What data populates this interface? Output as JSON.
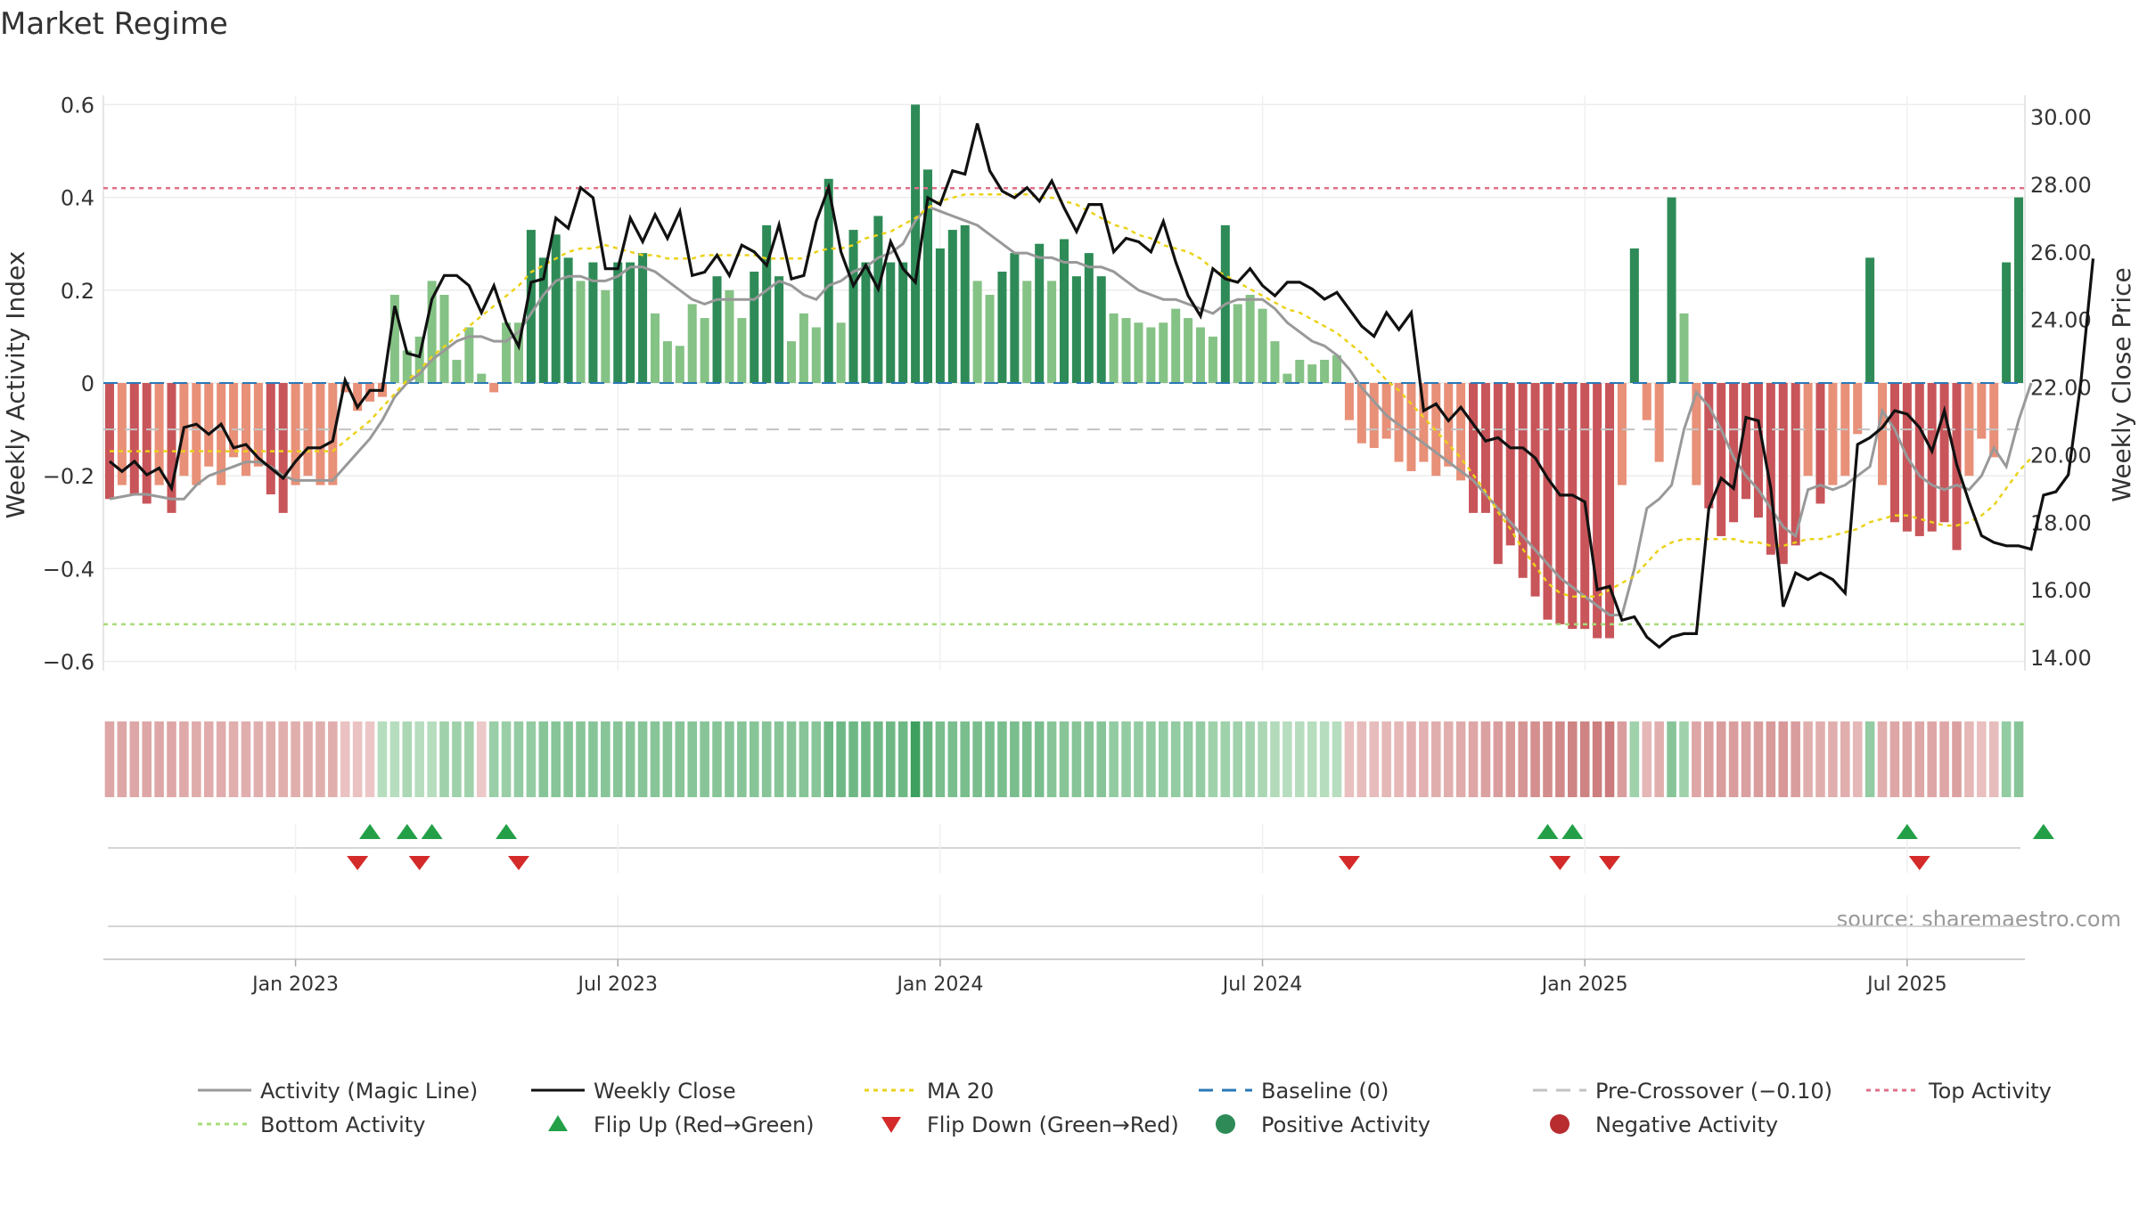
{
  "title": "Market Regime",
  "source": "source: sharemaestro.com",
  "colors": {
    "activity_line": "#999999",
    "close_line": "#111111",
    "ma20_line": "#ecd21a",
    "baseline": "#2b78b6",
    "pre_crossover": "#c3c3c3",
    "top_line": "#e0708a",
    "bottom_line": "#a8dc7a",
    "flip_up": "#23a047",
    "flip_down": "#d42a2a",
    "pos_dark": "#2e8b57",
    "pos_light": "#85c285",
    "neg_dark": "#c8555a",
    "neg_light": "#e89078"
  },
  "chart_data": {
    "type": "bar",
    "title": "Market Regime",
    "ylabel": "Weekly Activity Index",
    "y2label": "Weekly Close Price",
    "ylim": [
      -0.62,
      0.62
    ],
    "y2lim": [
      13.0,
      30.8
    ],
    "yticks": [
      0.6,
      0.4,
      0.2,
      0,
      -0.2,
      -0.4,
      -0.6
    ],
    "ytick_labels": [
      "0.6",
      "0.4",
      "0.2",
      "0",
      "−0.2",
      "−0.4",
      "−0.6"
    ],
    "y2ticks": [
      30,
      28,
      26,
      24,
      22,
      20,
      18,
      16,
      14
    ],
    "y2tick_labels": [
      "30.00",
      "28.00",
      "26.00",
      "24.00",
      "22.00",
      "20.00",
      "18.00",
      "16.00",
      "14.00"
    ],
    "xtick_labels": [
      "Jan 2023",
      "Jul 2023",
      "Jan 2024",
      "Jul 2024",
      "Jan 2025",
      "Jul 2025"
    ],
    "xtick_index": [
      15,
      41,
      67,
      93,
      119,
      145
    ],
    "grid": true,
    "lines": {
      "top_activity": 0.42,
      "bottom_activity": -0.52,
      "baseline": 0,
      "pre_crossover": -0.1
    },
    "activity": [
      -0.25,
      -0.22,
      -0.24,
      -0.26,
      -0.22,
      -0.28,
      -0.2,
      -0.22,
      -0.18,
      -0.22,
      -0.16,
      -0.2,
      -0.18,
      -0.24,
      -0.28,
      -0.22,
      -0.2,
      -0.22,
      -0.22,
      -0.02,
      -0.06,
      -0.04,
      -0.03,
      0.19,
      0.07,
      0.1,
      0.22,
      0.19,
      0.05,
      0.12,
      0.02,
      -0.02,
      0.13,
      0.13,
      0.33,
      0.27,
      0.32,
      0.27,
      0.22,
      0.26,
      0.2,
      0.26,
      0.26,
      0.28,
      0.15,
      0.09,
      0.08,
      0.17,
      0.14,
      0.23,
      0.2,
      0.14,
      0.24,
      0.34,
      0.23,
      0.09,
      0.15,
      0.12,
      0.44,
      0.13,
      0.33,
      0.26,
      0.36,
      0.26,
      0.26,
      0.6,
      0.46,
      0.29,
      0.33,
      0.34,
      0.22,
      0.19,
      0.24,
      0.28,
      0.22,
      0.3,
      0.22,
      0.31,
      0.23,
      0.28,
      0.23,
      0.15,
      0.14,
      0.13,
      0.12,
      0.13,
      0.16,
      0.14,
      0.12,
      0.1,
      0.34,
      0.17,
      0.19,
      0.16,
      0.09,
      0.02,
      0.05,
      0.04,
      0.05,
      0.06,
      -0.08,
      -0.13,
      -0.14,
      -0.12,
      -0.17,
      -0.19,
      -0.17,
      -0.2,
      -0.18,
      -0.21,
      -0.28,
      -0.28,
      -0.39,
      -0.35,
      -0.42,
      -0.46,
      -0.51,
      -0.52,
      -0.53,
      -0.53,
      -0.55,
      -0.55,
      -0.22,
      0.29,
      -0.08,
      -0.17,
      0.4,
      0.15,
      -0.22,
      -0.27,
      -0.33,
      -0.3,
      -0.25,
      -0.29,
      -0.37,
      -0.39,
      -0.35,
      -0.2,
      -0.26,
      -0.22,
      -0.2,
      -0.11,
      0.27,
      -0.22,
      -0.3,
      -0.32,
      -0.33,
      -0.32,
      -0.3,
      -0.36,
      -0.2,
      -0.12,
      -0.16,
      0.26,
      0.4
    ],
    "magic_line": [
      -0.25,
      -0.245,
      -0.24,
      -0.24,
      -0.245,
      -0.25,
      -0.25,
      -0.22,
      -0.2,
      -0.19,
      -0.18,
      -0.17,
      -0.17,
      -0.18,
      -0.2,
      -0.21,
      -0.21,
      -0.21,
      -0.21,
      -0.18,
      -0.15,
      -0.12,
      -0.08,
      -0.03,
      0.0,
      0.02,
      0.05,
      0.07,
      0.09,
      0.1,
      0.1,
      0.09,
      0.09,
      0.11,
      0.15,
      0.19,
      0.22,
      0.23,
      0.23,
      0.22,
      0.22,
      0.23,
      0.25,
      0.25,
      0.24,
      0.22,
      0.2,
      0.18,
      0.17,
      0.18,
      0.18,
      0.18,
      0.18,
      0.2,
      0.22,
      0.21,
      0.19,
      0.18,
      0.21,
      0.22,
      0.24,
      0.25,
      0.27,
      0.28,
      0.3,
      0.35,
      0.38,
      0.37,
      0.36,
      0.35,
      0.34,
      0.32,
      0.3,
      0.28,
      0.28,
      0.27,
      0.27,
      0.26,
      0.26,
      0.25,
      0.25,
      0.24,
      0.22,
      0.2,
      0.19,
      0.18,
      0.18,
      0.17,
      0.16,
      0.15,
      0.17,
      0.18,
      0.18,
      0.18,
      0.16,
      0.13,
      0.11,
      0.09,
      0.08,
      0.06,
      0.03,
      -0.01,
      -0.04,
      -0.07,
      -0.09,
      -0.11,
      -0.13,
      -0.15,
      -0.17,
      -0.19,
      -0.21,
      -0.24,
      -0.27,
      -0.3,
      -0.33,
      -0.36,
      -0.39,
      -0.42,
      -0.44,
      -0.46,
      -0.48,
      -0.5,
      -0.5,
      -0.4,
      -0.27,
      -0.25,
      -0.22,
      -0.1,
      -0.02,
      -0.05,
      -0.1,
      -0.16,
      -0.2,
      -0.23,
      -0.27,
      -0.31,
      -0.33,
      -0.23,
      -0.22,
      -0.23,
      -0.22,
      -0.2,
      -0.18,
      -0.06,
      -0.1,
      -0.16,
      -0.2,
      -0.22,
      -0.23,
      -0.22,
      -0.23,
      -0.2,
      -0.14,
      -0.18,
      -0.08,
      0.0
    ],
    "weekly_close": [
      19.8,
      19.5,
      19.8,
      19.4,
      19.6,
      19.0,
      20.8,
      20.9,
      20.6,
      20.9,
      20.2,
      20.3,
      19.9,
      19.6,
      19.3,
      19.8,
      20.2,
      20.2,
      20.4,
      22.2,
      21.4,
      21.9,
      21.9,
      24.4,
      23.0,
      22.9,
      24.6,
      25.3,
      25.3,
      25.0,
      24.2,
      25.0,
      23.9,
      23.2,
      25.1,
      25.2,
      27.0,
      26.7,
      27.9,
      27.6,
      25.5,
      25.5,
      27.0,
      26.3,
      27.1,
      26.4,
      27.2,
      25.3,
      25.4,
      25.9,
      25.3,
      26.2,
      26.0,
      25.6,
      26.8,
      25.2,
      25.3,
      26.9,
      27.9,
      26.0,
      25.0,
      25.6,
      24.9,
      26.3,
      25.5,
      25.1,
      27.6,
      27.4,
      28.4,
      28.3,
      29.8,
      28.4,
      27.8,
      27.6,
      27.9,
      27.5,
      28.1,
      27.3,
      26.6,
      27.4,
      27.4,
      26.0,
      26.4,
      26.3,
      26.0,
      26.9,
      25.7,
      24.7,
      24.1,
      25.5,
      25.2,
      25.1,
      25.5,
      25.0,
      24.7,
      25.1,
      25.1,
      24.9,
      24.6,
      24.8,
      24.3,
      23.8,
      23.5,
      24.2,
      23.7,
      24.2,
      21.3,
      21.5,
      21.0,
      21.4,
      20.9,
      20.4,
      20.5,
      20.2,
      20.2,
      19.9,
      19.3,
      18.8,
      18.8,
      18.6,
      16.0,
      16.1,
      15.1,
      15.2,
      14.6,
      14.3,
      14.6,
      14.7,
      14.7,
      18.4,
      19.3,
      19.0,
      21.1,
      21.0,
      19.0,
      15.5,
      16.5,
      16.3,
      16.5,
      16.3,
      15.9,
      20.3,
      20.5,
      20.8,
      21.3,
      21.2,
      20.8,
      20.1,
      21.3,
      19.7,
      18.6,
      17.6,
      17.4,
      17.3,
      17.3,
      17.2,
      18.8,
      18.9,
      19.4,
      22.1,
      25.8
    ],
    "ma20": [
      20.1,
      20.1,
      20.1,
      20.1,
      20.1,
      20.1,
      20.1,
      20.1,
      20.1,
      20.1,
      20.1,
      20.1,
      20.1,
      20.1,
      20.1,
      20.1,
      20.1,
      20.1,
      20.1,
      20.4,
      20.7,
      21.0,
      21.4,
      21.8,
      22.2,
      22.5,
      22.9,
      23.2,
      23.5,
      23.8,
      24.1,
      24.4,
      24.7,
      25.0,
      25.4,
      25.6,
      25.8,
      26.0,
      26.1,
      26.1,
      26.2,
      26.1,
      26.0,
      25.9,
      25.9,
      25.8,
      25.8,
      25.8,
      25.9,
      25.9,
      25.9,
      25.9,
      25.9,
      25.8,
      25.8,
      25.8,
      25.8,
      26.0,
      26.1,
      26.1,
      26.2,
      26.4,
      26.5,
      26.6,
      26.8,
      27.0,
      27.3,
      27.5,
      27.6,
      27.7,
      27.7,
      27.7,
      27.7,
      27.7,
      27.7,
      27.6,
      27.6,
      27.5,
      27.4,
      27.2,
      27.0,
      26.8,
      26.7,
      26.5,
      26.4,
      26.2,
      26.1,
      26.0,
      25.8,
      25.5,
      25.3,
      25.1,
      24.9,
      24.7,
      24.5,
      24.3,
      24.2,
      24.0,
      23.8,
      23.6,
      23.3,
      23.0,
      22.6,
      22.2,
      21.9,
      21.5,
      21.1,
      20.7,
      20.3,
      19.9,
      19.4,
      18.9,
      18.3,
      17.8,
      17.2,
      16.7,
      16.2,
      15.9,
      15.8,
      15.8,
      15.8,
      16.0,
      16.2,
      16.4,
      16.8,
      17.2,
      17.4,
      17.5,
      17.5,
      17.5,
      17.5,
      17.5,
      17.4,
      17.4,
      17.3,
      17.3,
      17.4,
      17.5,
      17.5,
      17.6,
      17.7,
      17.8,
      18.0,
      18.1,
      18.2,
      18.2,
      18.1,
      18.0,
      17.9,
      17.9,
      18.0,
      18.2,
      18.5,
      19.0,
      19.5,
      19.9
    ],
    "regime_levels": [
      -0.25,
      -0.24,
      -0.24,
      -0.25,
      -0.24,
      -0.25,
      -0.23,
      -0.22,
      -0.22,
      -0.21,
      -0.2,
      -0.2,
      -0.2,
      -0.2,
      -0.2,
      -0.2,
      -0.2,
      -0.2,
      -0.2,
      -0.08,
      -0.08,
      -0.06,
      0.1,
      0.1,
      0.15,
      0.1,
      0.1,
      0.2,
      0.2,
      0.2,
      -0.05,
      0.22,
      0.22,
      0.25,
      0.25,
      0.3,
      0.3,
      0.3,
      0.3,
      0.3,
      0.3,
      0.3,
      0.3,
      0.3,
      0.3,
      0.3,
      0.3,
      0.3,
      0.3,
      0.3,
      0.3,
      0.3,
      0.3,
      0.3,
      0.3,
      0.3,
      0.3,
      0.3,
      0.4,
      0.4,
      0.4,
      0.4,
      0.4,
      0.4,
      0.4,
      0.6,
      0.42,
      0.35,
      0.35,
      0.35,
      0.35,
      0.35,
      0.35,
      0.35,
      0.35,
      0.35,
      0.3,
      0.3,
      0.3,
      0.3,
      0.3,
      0.25,
      0.25,
      0.25,
      0.25,
      0.25,
      0.25,
      0.25,
      0.25,
      0.2,
      0.2,
      0.2,
      0.18,
      0.15,
      0.12,
      0.1,
      0.1,
      0.1,
      0.1,
      0.1,
      -0.1,
      -0.12,
      -0.12,
      -0.15,
      -0.15,
      -0.18,
      -0.18,
      -0.2,
      -0.2,
      -0.22,
      -0.25,
      -0.28,
      -0.3,
      -0.32,
      -0.35,
      -0.38,
      -0.4,
      -0.42,
      -0.45,
      -0.45,
      -0.48,
      -0.5,
      -0.3,
      0.2,
      -0.15,
      -0.2,
      0.3,
      0.2,
      -0.25,
      -0.28,
      -0.3,
      -0.3,
      -0.28,
      -0.3,
      -0.32,
      -0.33,
      -0.3,
      -0.2,
      -0.2,
      -0.2,
      -0.2,
      -0.15,
      0.25,
      -0.2,
      -0.25,
      -0.25,
      -0.25,
      -0.25,
      -0.25,
      -0.28,
      -0.15,
      -0.1,
      -0.12,
      0.25,
      0.3
    ],
    "flip_up_index": [
      21,
      24,
      26,
      32,
      116,
      118,
      145,
      156
    ],
    "flip_down_index": [
      20,
      25,
      33,
      100,
      117,
      121,
      146
    ],
    "legend": [
      {
        "label": "Activity (Magic Line)",
        "kind": "line",
        "style": "solid",
        "color": "#999999"
      },
      {
        "label": "Weekly Close",
        "kind": "line",
        "style": "solid",
        "color": "#111111"
      },
      {
        "label": "MA 20",
        "kind": "line",
        "style": "dotted",
        "color": "#ecd21a"
      },
      {
        "label": "Baseline (0)",
        "kind": "line",
        "style": "dashed",
        "color": "#2b78b6"
      },
      {
        "label": "Pre-Crossover (−0.10)",
        "kind": "line",
        "style": "dashed",
        "color": "#c3c3c3"
      },
      {
        "label": "Top Activity",
        "kind": "line",
        "style": "dotted",
        "color": "#e0708a"
      },
      {
        "label": "Bottom Activity",
        "kind": "line",
        "style": "dotted",
        "color": "#a8dc7a"
      },
      {
        "label": "Flip Up (Red→Green)",
        "kind": "triangle-up",
        "color": "#23a047"
      },
      {
        "label": "Flip Down (Green→Red)",
        "kind": "triangle-down",
        "color": "#d42a2a"
      },
      {
        "label": "Positive Activity",
        "kind": "circle",
        "color": "#2e8b57"
      },
      {
        "label": "Negative Activity",
        "kind": "circle",
        "color": "#b82c30"
      }
    ]
  }
}
